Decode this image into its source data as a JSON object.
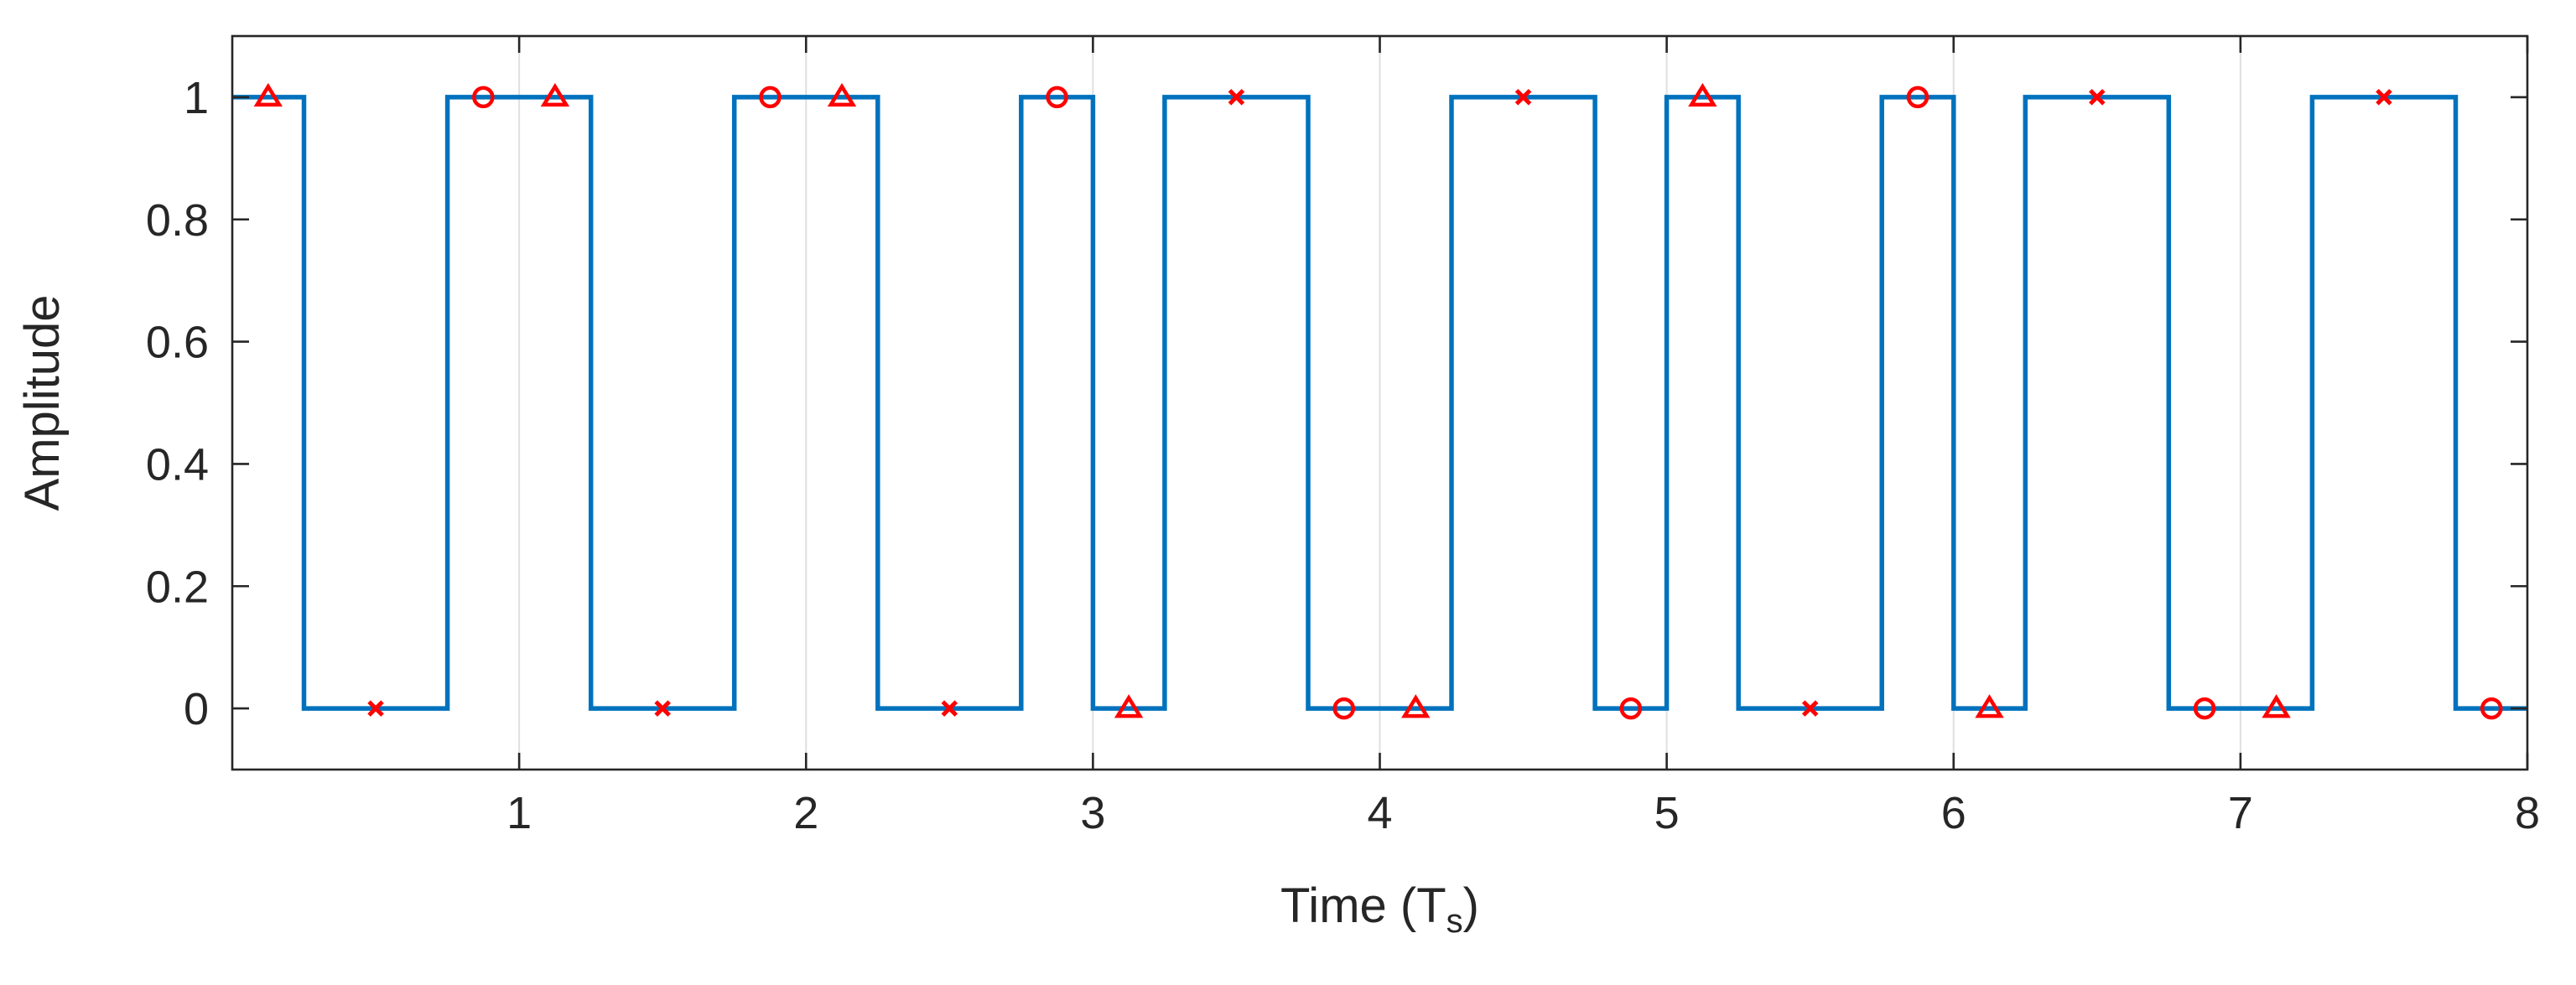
{
  "chart_data": {
    "type": "line",
    "xlabel": "Time (T",
    "xlabel_subscript": "s",
    "xlabel_suffix": ")",
    "ylabel": "Amplitude",
    "xlim": [
      0,
      8
    ],
    "ylim": [
      -0.1,
      1.1
    ],
    "x_ticks": [
      1,
      2,
      3,
      4,
      5,
      6,
      7,
      8
    ],
    "y_ticks": [
      0,
      0.2,
      0.4,
      0.6,
      0.8,
      1
    ],
    "x_tick_labels": [
      "1",
      "2",
      "3",
      "4",
      "5",
      "6",
      "7",
      "8"
    ],
    "y_tick_labels": [
      "0",
      "0.2",
      "0.4",
      "0.6",
      "0.8",
      "1"
    ],
    "grid": "vertical",
    "colors": {
      "signal": "#0072BD",
      "markers": "#FF0000",
      "axes": "#262626",
      "grid": "#DFDFDF"
    },
    "series": [
      {
        "style": "step",
        "points": [
          [
            0,
            1
          ],
          [
            0.25,
            1
          ],
          [
            0.25,
            0
          ],
          [
            0.75,
            0
          ],
          [
            0.75,
            1
          ],
          [
            1.25,
            1
          ],
          [
            1.25,
            0
          ],
          [
            1.75,
            0
          ],
          [
            1.75,
            1
          ],
          [
            2.25,
            1
          ],
          [
            2.25,
            0
          ],
          [
            2.75,
            0
          ],
          [
            2.75,
            1
          ],
          [
            3.0,
            1
          ],
          [
            3.0,
            0
          ],
          [
            3.25,
            0
          ],
          [
            3.25,
            1
          ],
          [
            3.75,
            1
          ],
          [
            3.75,
            0
          ],
          [
            4.25,
            0
          ],
          [
            4.25,
            1
          ],
          [
            4.75,
            1
          ],
          [
            4.75,
            0
          ],
          [
            5.0,
            0
          ],
          [
            5.0,
            1
          ],
          [
            5.25,
            1
          ],
          [
            5.25,
            0
          ],
          [
            5.75,
            0
          ],
          [
            5.75,
            1
          ],
          [
            6.0,
            1
          ],
          [
            6.0,
            0
          ],
          [
            6.25,
            0
          ],
          [
            6.25,
            1
          ],
          [
            6.75,
            1
          ],
          [
            6.75,
            0
          ],
          [
            7.25,
            0
          ],
          [
            7.25,
            1
          ],
          [
            7.75,
            1
          ],
          [
            7.75,
            0
          ],
          [
            8.0,
            0
          ]
        ]
      },
      {
        "style": "markers",
        "marker": "triangle",
        "points": [
          [
            0.125,
            1
          ],
          [
            1.125,
            1
          ],
          [
            2.125,
            1
          ],
          [
            3.125,
            0
          ],
          [
            4.125,
            0
          ],
          [
            5.125,
            1
          ],
          [
            6.125,
            0
          ],
          [
            7.125,
            0
          ]
        ]
      },
      {
        "style": "markers",
        "marker": "cross",
        "points": [
          [
            0.5,
            0
          ],
          [
            1.5,
            0
          ],
          [
            2.5,
            0
          ],
          [
            3.5,
            1
          ],
          [
            4.5,
            1
          ],
          [
            5.5,
            0
          ],
          [
            6.5,
            1
          ],
          [
            7.5,
            1
          ]
        ]
      },
      {
        "style": "markers",
        "marker": "circle",
        "points": [
          [
            0.875,
            1
          ],
          [
            1.875,
            1
          ],
          [
            2.875,
            1
          ],
          [
            3.875,
            0
          ],
          [
            4.875,
            0
          ],
          [
            5.875,
            1
          ],
          [
            6.875,
            0
          ],
          [
            7.875,
            0
          ]
        ]
      }
    ]
  }
}
